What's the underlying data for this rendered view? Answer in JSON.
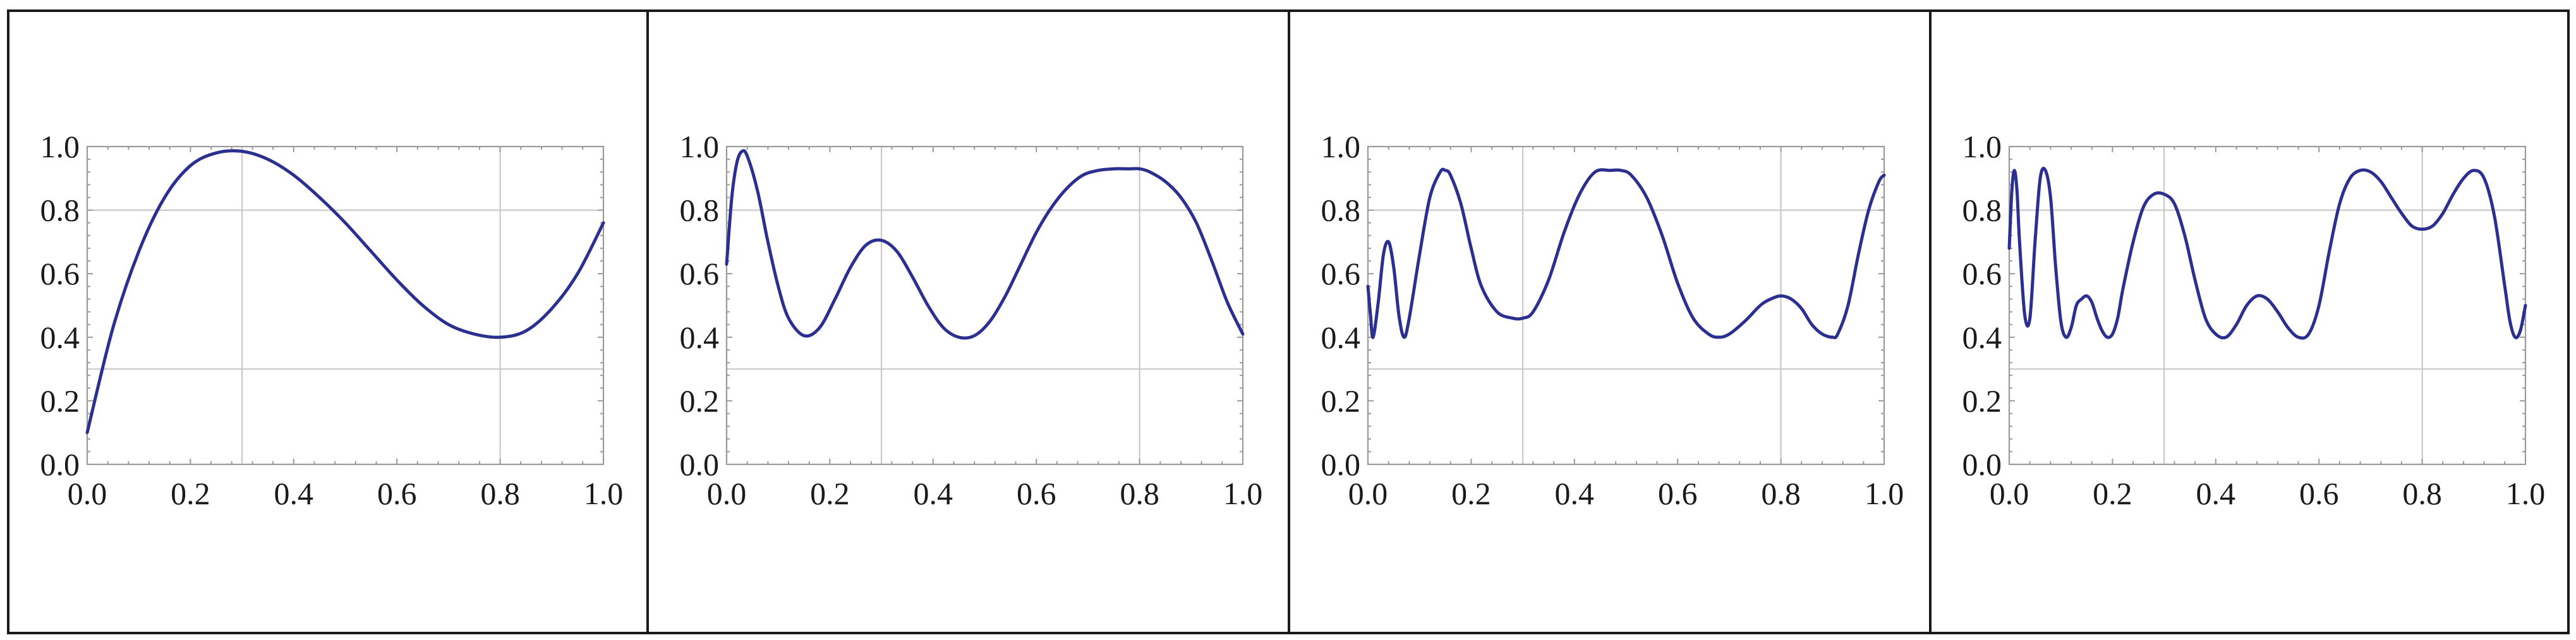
{
  "chart_data": [
    {
      "type": "line",
      "title": "",
      "xlabel": "",
      "ylabel": "",
      "xlim": [
        0,
        1
      ],
      "ylim": [
        0,
        1
      ],
      "xticks": [
        "0.0",
        "0.2",
        "0.4",
        "0.6",
        "0.8",
        "1.0"
      ],
      "yticks": [
        "0.0",
        "0.2",
        "0.4",
        "0.6",
        "0.8",
        "1.0"
      ],
      "grid_x": [
        0.3,
        0.8
      ],
      "grid_y": [
        0.3,
        0.8
      ],
      "color": "#2b2f8f",
      "series": [
        {
          "x": [
            0,
            0.05,
            0.1,
            0.15,
            0.2,
            0.25,
            0.3,
            0.35,
            0.4,
            0.45,
            0.5,
            0.55,
            0.6,
            0.65,
            0.7,
            0.75,
            0.8,
            0.85,
            0.9,
            0.95,
            1.0
          ],
          "y": [
            0.1,
            0.43,
            0.67,
            0.84,
            0.94,
            0.98,
            0.985,
            0.96,
            0.91,
            0.84,
            0.76,
            0.67,
            0.58,
            0.5,
            0.44,
            0.41,
            0.4,
            0.42,
            0.49,
            0.6,
            0.76
          ]
        }
      ]
    },
    {
      "type": "line",
      "title": "",
      "xlabel": "",
      "ylabel": "",
      "xlim": [
        0,
        1
      ],
      "ylim": [
        0,
        1
      ],
      "xticks": [
        "0.0",
        "0.2",
        "0.4",
        "0.6",
        "0.8",
        "1.0"
      ],
      "yticks": [
        "0.0",
        "0.2",
        "0.4",
        "0.6",
        "0.8",
        "1.0"
      ],
      "grid_x": [
        0.3,
        0.8
      ],
      "grid_y": [
        0.3,
        0.8
      ],
      "color": "#2b2f8f",
      "series": [
        {
          "x": [
            0,
            0.01,
            0.02,
            0.03,
            0.04,
            0.06,
            0.08,
            0.1,
            0.12,
            0.15,
            0.18,
            0.21,
            0.24,
            0.27,
            0.3,
            0.33,
            0.36,
            0.39,
            0.42,
            0.45,
            0.48,
            0.51,
            0.54,
            0.57,
            0.6,
            0.63,
            0.66,
            0.69,
            0.72,
            0.75,
            0.78,
            0.8,
            0.82,
            0.85,
            0.88,
            0.91,
            0.94,
            0.97,
            1.0
          ],
          "y": [
            0.63,
            0.84,
            0.95,
            0.985,
            0.97,
            0.86,
            0.7,
            0.56,
            0.46,
            0.405,
            0.43,
            0.52,
            0.62,
            0.69,
            0.705,
            0.67,
            0.59,
            0.5,
            0.43,
            0.4,
            0.405,
            0.45,
            0.53,
            0.63,
            0.73,
            0.81,
            0.87,
            0.91,
            0.925,
            0.93,
            0.93,
            0.93,
            0.92,
            0.89,
            0.84,
            0.76,
            0.64,
            0.51,
            0.41
          ]
        }
      ]
    },
    {
      "type": "line",
      "title": "",
      "xlabel": "",
      "ylabel": "",
      "xlim": [
        0,
        1
      ],
      "ylim": [
        0,
        1
      ],
      "xticks": [
        "0.0",
        "0.2",
        "0.4",
        "0.6",
        "0.8",
        "1.0"
      ],
      "yticks": [
        "0.0",
        "0.2",
        "0.4",
        "0.6",
        "0.8",
        "1.0"
      ],
      "grid_x": [
        0.3,
        0.8
      ],
      "grid_y": [
        0.3,
        0.8
      ],
      "color": "#2b2f8f",
      "series": [
        {
          "x": [
            0,
            0.005,
            0.01,
            0.02,
            0.03,
            0.04,
            0.05,
            0.06,
            0.07,
            0.08,
            0.1,
            0.12,
            0.14,
            0.15,
            0.16,
            0.18,
            0.2,
            0.22,
            0.25,
            0.28,
            0.3,
            0.32,
            0.35,
            0.38,
            0.41,
            0.44,
            0.47,
            0.49,
            0.51,
            0.54,
            0.57,
            0.6,
            0.63,
            0.66,
            0.68,
            0.7,
            0.73,
            0.76,
            0.78,
            0.8,
            0.82,
            0.84,
            0.86,
            0.88,
            0.9,
            0.91,
            0.93,
            0.95,
            0.97,
            0.99,
            1.0
          ],
          "y": [
            0.56,
            0.47,
            0.4,
            0.51,
            0.66,
            0.7,
            0.62,
            0.47,
            0.4,
            0.46,
            0.66,
            0.84,
            0.92,
            0.925,
            0.91,
            0.82,
            0.68,
            0.56,
            0.48,
            0.46,
            0.46,
            0.48,
            0.58,
            0.73,
            0.85,
            0.92,
            0.925,
            0.925,
            0.91,
            0.84,
            0.72,
            0.57,
            0.46,
            0.41,
            0.4,
            0.41,
            0.45,
            0.5,
            0.52,
            0.53,
            0.52,
            0.49,
            0.44,
            0.41,
            0.4,
            0.41,
            0.5,
            0.66,
            0.8,
            0.89,
            0.91
          ]
        }
      ]
    },
    {
      "type": "line",
      "title": "",
      "xlabel": "",
      "ylabel": "",
      "xlim": [
        0,
        1
      ],
      "ylim": [
        0,
        1
      ],
      "xticks": [
        "0.0",
        "0.2",
        "0.4",
        "0.6",
        "0.8",
        "1.0"
      ],
      "yticks": [
        "0.0",
        "0.2",
        "0.4",
        "0.6",
        "0.8",
        "1.0"
      ],
      "grid_x": [
        0.3,
        0.8
      ],
      "grid_y": [
        0.3,
        0.8
      ],
      "color": "#2b2f8f",
      "series": [
        {
          "x": [
            0,
            0.005,
            0.01,
            0.015,
            0.02,
            0.03,
            0.04,
            0.05,
            0.06,
            0.07,
            0.08,
            0.09,
            0.1,
            0.11,
            0.12,
            0.13,
            0.14,
            0.15,
            0.16,
            0.17,
            0.18,
            0.19,
            0.2,
            0.21,
            0.22,
            0.24,
            0.26,
            0.28,
            0.3,
            0.32,
            0.34,
            0.36,
            0.38,
            0.4,
            0.42,
            0.44,
            0.46,
            0.48,
            0.5,
            0.52,
            0.54,
            0.56,
            0.58,
            0.6,
            0.62,
            0.64,
            0.66,
            0.68,
            0.7,
            0.72,
            0.74,
            0.76,
            0.78,
            0.8,
            0.82,
            0.84,
            0.86,
            0.88,
            0.9,
            0.92,
            0.94,
            0.96,
            0.97,
            0.98,
            0.99,
            1.0
          ],
          "y": [
            0.68,
            0.86,
            0.925,
            0.86,
            0.7,
            0.47,
            0.46,
            0.7,
            0.9,
            0.925,
            0.84,
            0.62,
            0.45,
            0.4,
            0.43,
            0.5,
            0.52,
            0.53,
            0.51,
            0.46,
            0.42,
            0.4,
            0.41,
            0.46,
            0.55,
            0.7,
            0.81,
            0.85,
            0.85,
            0.82,
            0.72,
            0.58,
            0.46,
            0.41,
            0.4,
            0.44,
            0.5,
            0.53,
            0.52,
            0.48,
            0.43,
            0.4,
            0.41,
            0.5,
            0.67,
            0.82,
            0.9,
            0.925,
            0.92,
            0.89,
            0.84,
            0.79,
            0.75,
            0.74,
            0.75,
            0.79,
            0.85,
            0.9,
            0.925,
            0.9,
            0.78,
            0.56,
            0.45,
            0.4,
            0.42,
            0.5
          ]
        }
      ]
    }
  ]
}
